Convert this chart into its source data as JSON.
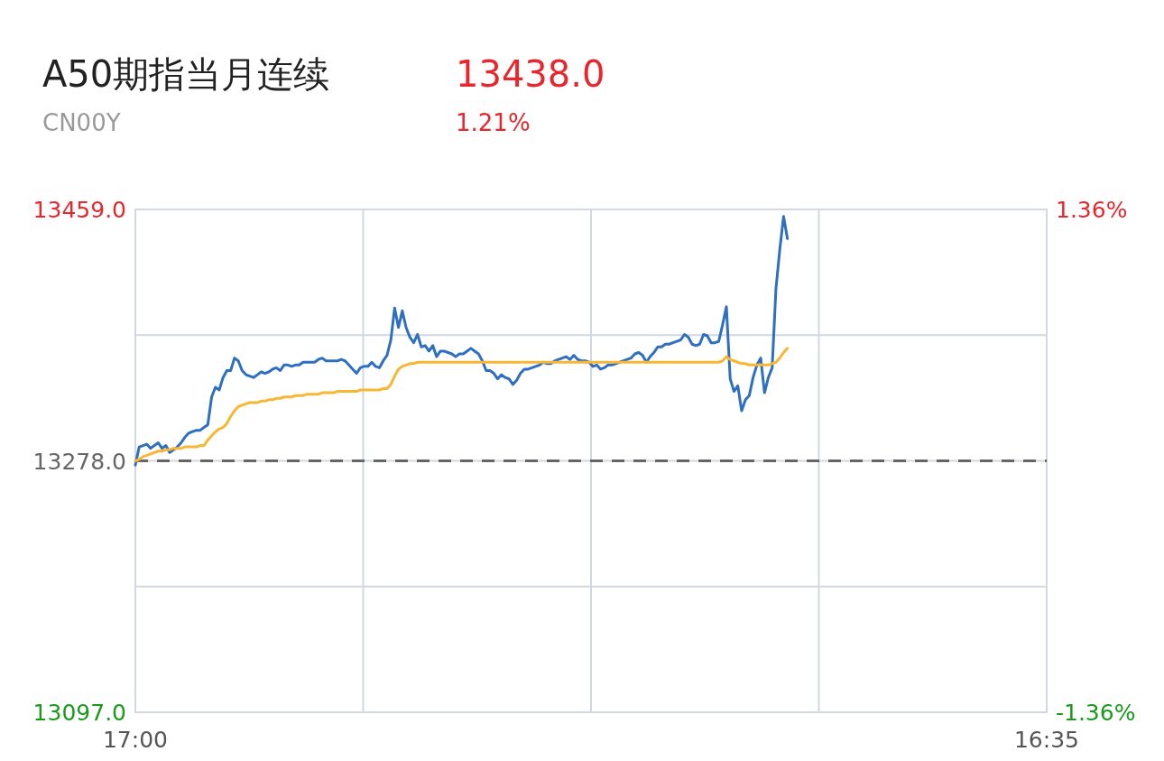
{
  "chart_data": {
    "type": "line",
    "title": "A50期指当月连续",
    "subtitle": "CN00Y",
    "annotations": [
      "13438.0",
      "1.21%"
    ],
    "categories": [
      "17:00",
      null,
      null,
      null,
      null,
      null,
      null,
      null,
      null,
      null,
      null,
      null,
      null,
      null,
      null,
      null,
      null,
      null,
      null,
      null,
      null,
      null,
      null,
      null,
      null,
      null,
      null,
      null,
      null,
      null,
      null,
      null,
      null,
      null,
      null,
      null,
      null,
      null,
      null,
      null,
      null,
      null,
      null,
      null,
      null,
      null,
      null,
      null,
      null,
      null,
      null,
      null,
      null,
      null,
      null,
      null,
      null,
      null,
      null,
      null,
      null,
      null,
      null,
      null,
      null,
      null,
      null,
      null,
      null,
      null,
      null,
      null,
      null,
      null,
      null,
      null,
      null,
      null,
      null,
      null,
      null,
      null,
      null,
      null,
      null,
      null,
      null,
      null,
      null,
      null,
      null,
      null,
      null,
      null,
      null,
      null,
      null,
      null,
      null,
      null,
      null,
      null,
      null,
      null,
      null,
      null,
      null,
      null,
      null,
      null,
      null,
      null,
      null,
      null,
      null,
      null,
      null,
      null,
      null,
      null,
      null,
      null,
      null,
      null,
      null,
      null,
      null,
      null,
      null,
      null,
      null,
      null,
      null,
      null,
      null,
      null,
      null,
      null,
      null,
      null,
      null,
      null,
      null,
      null,
      null,
      null,
      null,
      null,
      null,
      null,
      null,
      null,
      null,
      null,
      null,
      null,
      null,
      null,
      null,
      null,
      null,
      null,
      null,
      null,
      null,
      null,
      null,
      null,
      null,
      null,
      null,
      null,
      null,
      null,
      null,
      null,
      null,
      null,
      null,
      null,
      null,
      null,
      null,
      null,
      null,
      null,
      null,
      null,
      null,
      null,
      null,
      null,
      null,
      null,
      null,
      null,
      null,
      null,
      null,
      null,
      null,
      null,
      null,
      null,
      null,
      null,
      null,
      null,
      null,
      null,
      null,
      null,
      null,
      null,
      null,
      null,
      null,
      null,
      null,
      null,
      null,
      null,
      null,
      null,
      null,
      null,
      null,
      null,
      null,
      null,
      null,
      null,
      null,
      null,
      null,
      null,
      null,
      null,
      null,
      "16:35"
    ],
    "ylim": [
      13097,
      13459
    ],
    "yticks": [
      {
        "value": 13459,
        "label": "13459.0"
      },
      {
        "value": 13278,
        "label": "13278.0"
      },
      {
        "value": 13097,
        "label": "13097.0"
      }
    ],
    "y2lim": [
      -1.36,
      1.36
    ],
    "y2ticks": [
      {
        "value": 1.36,
        "label": "1.36%"
      },
      {
        "value": -1.36,
        "label": "-1.36%"
      }
    ],
    "grid": true,
    "ref_lines": [
      {
        "axis": "y",
        "value": 13278,
        "color": "#666666",
        "line_style": "dashed"
      }
    ],
    "series": [
      {
        "color": "#2f6fc1",
        "values": [
          13275,
          13288,
          13289,
          13290,
          13287,
          13289,
          13291,
          13287,
          13289,
          13284,
          13286,
          13288,
          13291,
          13295,
          13298,
          13299,
          13300,
          13300,
          13302,
          13304,
          13324,
          13331,
          13329,
          13338,
          13343,
          13343,
          13352,
          13350,
          13343,
          13340,
          13339,
          13338,
          13340,
          13342,
          13341,
          13342,
          13344,
          13345,
          13343,
          13347,
          13347,
          13346,
          13347,
          13347,
          13349,
          13349,
          13349,
          13349,
          13351,
          13352,
          13350,
          13350,
          13350,
          13350,
          13351,
          13350,
          13347,
          13344,
          13341,
          13345,
          13346,
          13346,
          13349,
          13346,
          13345,
          13350,
          13354,
          13365,
          13388,
          13374,
          13386,
          13374,
          13367,
          13363,
          13369,
          13360,
          13361,
          13357,
          13361,
          13353,
          13357,
          13357,
          13356,
          13355,
          13353,
          13355,
          13355,
          13357,
          13359,
          13357,
          13355,
          13350,
          13343,
          13343,
          13341,
          13337,
          13340,
          13338,
          13337,
          13333,
          13336,
          13341,
          13344,
          13344,
          13345,
          13346,
          13347,
          13349,
          13348,
          13348,
          13350,
          13351,
          13352,
          13353,
          13351,
          13354,
          13351,
          13350,
          13350,
          13349,
          13346,
          13347,
          13344,
          13345,
          13347,
          13347,
          13348,
          13349,
          13350,
          13351,
          13352,
          13355,
          13356,
          13354,
          13349,
          13353,
          13356,
          13360,
          13360,
          13362,
          13362,
          13363,
          13364,
          13365,
          13369,
          13367,
          13362,
          13361,
          13362,
          13369,
          13368,
          13363,
          13363,
          13364,
          13376,
          13389,
          13337,
          13328,
          13332,
          13314,
          13322,
          13325,
          13338,
          13347,
          13352,
          13327,
          13338,
          13345,
          13402,
          13430,
          13454,
          13438,
          null,
          null,
          null,
          null,
          null,
          null,
          null,
          null,
          null,
          null,
          null,
          null,
          null,
          null,
          null,
          null,
          null,
          null,
          null,
          null,
          null,
          null,
          null,
          null,
          null,
          null,
          null,
          null,
          null,
          null,
          null,
          null,
          null,
          null,
          null,
          null,
          null,
          null,
          null,
          null,
          null,
          null,
          null,
          null,
          null,
          null,
          null,
          null,
          null,
          null,
          null,
          null,
          null,
          null,
          null,
          null,
          null,
          null,
          null,
          null,
          null,
          null,
          null,
          null,
          null,
          null,
          null,
          null
        ]
      },
      {
        "color": "#f7b733",
        "values": [
          13278,
          13279,
          13281,
          13282,
          13283,
          13284,
          13285,
          13285,
          13286,
          13286,
          13287,
          13287,
          13287,
          13288,
          13288,
          13288,
          13288,
          13289,
          13289,
          13293,
          13296,
          13299,
          13301,
          13302,
          13305,
          13310,
          13314,
          13317,
          13318,
          13319,
          13320,
          13320,
          13320,
          13321,
          13321,
          13322,
          13322,
          13323,
          13323,
          13324,
          13324,
          13324,
          13325,
          13325,
          13325,
          13326,
          13326,
          13326,
          13326,
          13327,
          13327,
          13327,
          13327,
          13328,
          13328,
          13328,
          13328,
          13328,
          13328,
          13329,
          13329,
          13329,
          13329,
          13329,
          13329,
          13330,
          13330,
          13333,
          13339,
          13344,
          13346,
          13347,
          13348,
          13348,
          13349,
          13349,
          13349,
          13349,
          13349,
          13349,
          13349,
          13349,
          13349,
          13349,
          13349,
          13349,
          13349,
          13349,
          13349,
          13349,
          13349,
          13349,
          13349,
          13349,
          13349,
          13349,
          13349,
          13349,
          13349,
          13349,
          13349,
          13349,
          13349,
          13349,
          13349,
          13349,
          13349,
          13349,
          13349,
          13349,
          13349,
          13349,
          13349,
          13349,
          13349,
          13349,
          13349,
          13349,
          13349,
          13349,
          13349,
          13349,
          13349,
          13349,
          13349,
          13349,
          13349,
          13349,
          13349,
          13349,
          13349,
          13349,
          13349,
          13349,
          13349,
          13349,
          13349,
          13349,
          13349,
          13349,
          13349,
          13349,
          13349,
          13349,
          13349,
          13349,
          13349,
          13349,
          13349,
          13349,
          13349,
          13349,
          13349,
          13349,
          13350,
          13353,
          13351,
          13350,
          13349,
          13348,
          13348,
          13347,
          13347,
          13347,
          13347,
          13347,
          13347,
          13348,
          13349,
          13352,
          13356,
          13359,
          null,
          null,
          null,
          null,
          null,
          null,
          null,
          null,
          null,
          null,
          null,
          null,
          null,
          null,
          null,
          null,
          null,
          null,
          null,
          null,
          null,
          null,
          null,
          null,
          null,
          null,
          null,
          null,
          null,
          null,
          null,
          null,
          null,
          null,
          null,
          null,
          null,
          null,
          null,
          null,
          null,
          null,
          null,
          null,
          null,
          null,
          null,
          null,
          null,
          null,
          null,
          null,
          null,
          null,
          null,
          null,
          null,
          null,
          null,
          null,
          null,
          null,
          null,
          null,
          null,
          null,
          null,
          null
        ]
      }
    ]
  }
}
